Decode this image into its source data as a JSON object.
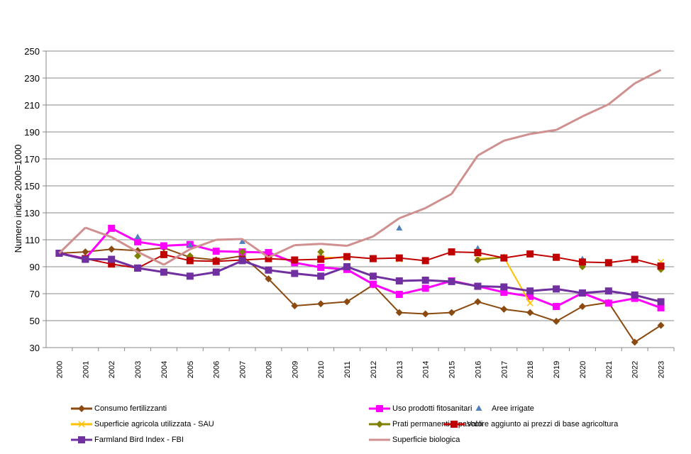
{
  "chart_data": {
    "type": "line",
    "title": "",
    "xlabel": "",
    "ylabel": "Numero indice 2000=1000",
    "ylim": [
      30,
      250
    ],
    "yticks": [
      30,
      50,
      70,
      90,
      110,
      130,
      150,
      170,
      190,
      210,
      230,
      250
    ],
    "grid": true,
    "legend_position": "bottom",
    "categories": [
      "2000",
      "2001",
      "2002",
      "2003",
      "2004",
      "2005",
      "2006",
      "2007",
      "2008",
      "2009",
      "2010",
      "2011",
      "2012",
      "2013",
      "2014",
      "2015",
      "2016",
      "2017",
      "2018",
      "2019",
      "2020",
      "2021",
      "2022",
      "2023"
    ],
    "series": [
      {
        "name": "Consumo fertilizzanti",
        "color": "#8B4A0F",
        "marker": "diamond",
        "line": true,
        "values": [
          100,
          101,
          103,
          102,
          104,
          97,
          95,
          98,
          81,
          61,
          62.5,
          64,
          76.5,
          56,
          55,
          56,
          64,
          58.5,
          56,
          49.5,
          60.5,
          63.5,
          34,
          46.5
        ]
      },
      {
        "name": "Uso prodotti fitosanitari",
        "color": "#FF00FF",
        "marker": "square",
        "line": true,
        "values": [
          100,
          96,
          118.5,
          108.5,
          105.5,
          106.5,
          101.5,
          101,
          100.5,
          93,
          89.5,
          88,
          77,
          69.5,
          74,
          79.5,
          75.5,
          71,
          68,
          60.5,
          70.5,
          63,
          66.5,
          59.5
        ]
      },
      {
        "name": "Aree irrigate",
        "color": "#4F81BD",
        "marker": "triangle",
        "line": false,
        "values": [
          100,
          null,
          null,
          112,
          null,
          106,
          null,
          108.5,
          null,
          null,
          98,
          null,
          null,
          118.5,
          null,
          null,
          103.5,
          null,
          null,
          null,
          95.5,
          null,
          null,
          null
        ]
      },
      {
        "name": "Superficie agricola utilizzata - SAU",
        "color": "#FFC000",
        "marker": "x",
        "line": true,
        "values": [
          100,
          null,
          null,
          null,
          null,
          null,
          null,
          null,
          null,
          null,
          97,
          96.5,
          null,
          95.5,
          null,
          null,
          96,
          97,
          63,
          null,
          null,
          null,
          null,
          93.5
        ]
      },
      {
        "name": "Prati permanenti e pascoli",
        "color": "#808000",
        "marker": "diamond",
        "line": true,
        "values": [
          100,
          null,
          null,
          98,
          null,
          98,
          null,
          101,
          null,
          null,
          101,
          null,
          null,
          null,
          null,
          null,
          95,
          97,
          null,
          null,
          90,
          null,
          null,
          88
        ]
      },
      {
        "name": "Valore aggiunto ai prezzi di base agricoltura",
        "color": "#C00000",
        "marker": "square",
        "line": true,
        "values": [
          100,
          96,
          92,
          89,
          99,
          94.5,
          94,
          95,
          96,
          95,
          95.5,
          97.5,
          96,
          96.5,
          94.5,
          101,
          100.5,
          96.5,
          99.5,
          97,
          93.5,
          93,
          95.5,
          90.5
        ]
      },
      {
        "name": "Farmland Bird Index - FBI",
        "color": "#7030A0",
        "marker": "square",
        "line": true,
        "values": [
          100,
          95.5,
          95.5,
          89,
          86,
          83,
          86,
          94.5,
          87.5,
          85,
          83,
          90,
          83,
          79.5,
          80,
          79,
          75.5,
          75,
          72,
          73.5,
          70.5,
          72,
          69,
          64
        ]
      },
      {
        "name": "Superficie biologica",
        "color": "#D09090",
        "marker": "none",
        "line": true,
        "values": [
          100,
          119,
          112,
          101,
          91.5,
          103,
          110,
          110.5,
          97,
          106,
          107,
          105.5,
          112.5,
          126,
          133.5,
          144,
          172.5,
          183.5,
          188.5,
          191.5,
          201.5,
          210.5,
          226,
          236
        ]
      }
    ]
  }
}
